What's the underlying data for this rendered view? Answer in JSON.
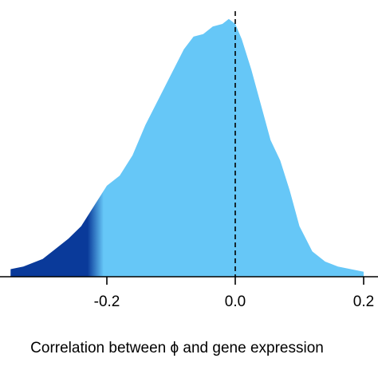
{
  "chart_data": {
    "type": "area",
    "title": "",
    "xlabel": "Correlation between ϕ and gene expression",
    "ylabel": "",
    "xlim": [
      -0.35,
      0.2
    ],
    "x_ticks": [
      {
        "value": -0.2,
        "label": "-0.2"
      },
      {
        "value": 0.0,
        "label": "0.0"
      },
      {
        "value": 0.2,
        "label": "0.2"
      }
    ],
    "reference_line": {
      "x": 0.0,
      "style": "dashed"
    },
    "gradient": {
      "left_color": "#0a3a9a",
      "right_color": "#66c7f7",
      "transition_start": -0.23,
      "transition_end": -0.205
    },
    "grid": false,
    "series": [
      {
        "x": [
          -0.35,
          -0.33,
          -0.3,
          -0.28,
          -0.26,
          -0.24,
          -0.22,
          -0.2,
          -0.18,
          -0.16,
          -0.14,
          -0.12,
          -0.1,
          -0.08,
          -0.065,
          -0.05,
          -0.035,
          -0.02,
          -0.01,
          0.0,
          0.01,
          0.025,
          0.04,
          0.055,
          0.07,
          0.085,
          0.1,
          0.12,
          0.14,
          0.16,
          0.18,
          0.2
        ],
        "y": [
          0.03,
          0.04,
          0.07,
          0.11,
          0.15,
          0.2,
          0.28,
          0.36,
          0.4,
          0.48,
          0.6,
          0.7,
          0.8,
          0.9,
          0.95,
          0.96,
          0.99,
          1.0,
          1.02,
          1.0,
          0.94,
          0.82,
          0.68,
          0.54,
          0.46,
          0.34,
          0.2,
          0.1,
          0.06,
          0.04,
          0.03,
          0.02
        ]
      }
    ]
  }
}
